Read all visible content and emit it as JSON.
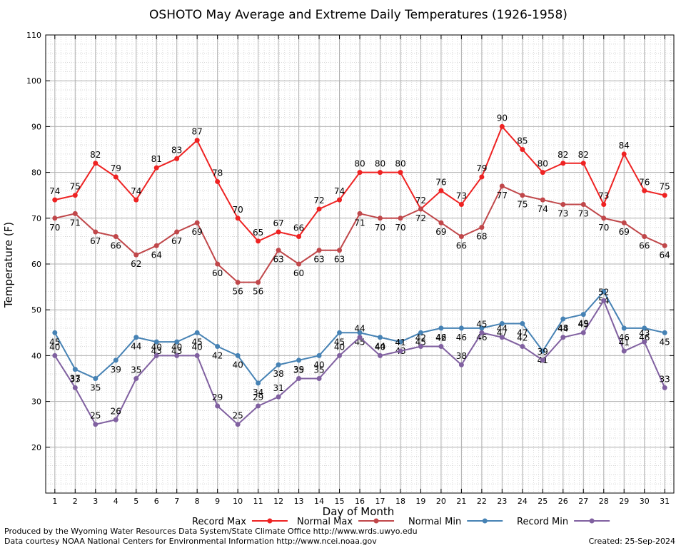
{
  "chart_data": {
    "type": "line",
    "title": "OSHOTO May Average and Extreme Daily Temperatures (1926-1958)",
    "xlabel": "Day of Month",
    "ylabel": "Temperature (F)",
    "x": [
      1,
      2,
      3,
      4,
      5,
      6,
      7,
      8,
      9,
      10,
      11,
      12,
      13,
      14,
      15,
      16,
      17,
      18,
      19,
      20,
      21,
      22,
      23,
      24,
      25,
      26,
      27,
      28,
      29,
      30,
      31
    ],
    "xlim": [
      0.55,
      31.45
    ],
    "ylim": [
      10,
      110
    ],
    "yticks": [
      20,
      30,
      40,
      50,
      60,
      70,
      80,
      90,
      100,
      110
    ],
    "grid": true,
    "legend_position": "bottom",
    "series": [
      {
        "name": "Record Max",
        "color": "#ee2222",
        "values": [
          74,
          75,
          82,
          79,
          74,
          81,
          83,
          87,
          78,
          70,
          65,
          67,
          66,
          72,
          74,
          80,
          80,
          80,
          72,
          76,
          73,
          79,
          90,
          85,
          80,
          82,
          82,
          73,
          84,
          76,
          75
        ]
      },
      {
        "name": "Normal Max",
        "color": "#c0474a",
        "values": [
          70,
          71,
          67,
          66,
          62,
          64,
          67,
          69,
          60,
          56,
          56,
          63,
          60,
          63,
          63,
          71,
          70,
          70,
          72,
          69,
          66,
          68,
          77,
          75,
          74,
          73,
          73,
          70,
          69,
          66,
          64
        ]
      },
      {
        "name": "Normal Min",
        "color": "#4682b4",
        "values": [
          45,
          37,
          35,
          39,
          44,
          43,
          43,
          45,
          42,
          40,
          34,
          38,
          39,
          40,
          45,
          45,
          44,
          43,
          45,
          46,
          46,
          46,
          47,
          47,
          41,
          48,
          49,
          54,
          46,
          46,
          45
        ]
      },
      {
        "name": "Record Min",
        "color": "#8060a0",
        "values": [
          40,
          33,
          25,
          26,
          35,
          40,
          40,
          40,
          29,
          25,
          29,
          31,
          35,
          35,
          40,
          44,
          40,
          41,
          42,
          42,
          38,
          45,
          44,
          42,
          39,
          44,
          45,
          52,
          41,
          43,
          33
        ]
      }
    ]
  },
  "footer": {
    "produced_by": "Produced by the Wyoming Water Resources Data System/State Climate Office http://www.wrds.uwyo.edu",
    "courtesy": "Data courtesy NOAA National Centers for Environmental Information http://www.ncei.noaa.gov",
    "created": "Created:  25-Sep-2024"
  }
}
